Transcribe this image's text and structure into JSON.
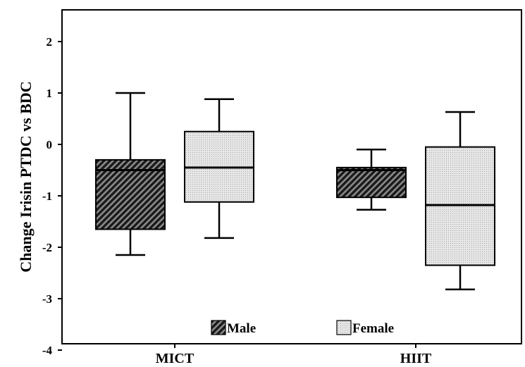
{
  "chart_data": {
    "type": "boxplot",
    "title": "",
    "xlabel": "",
    "ylabel": "Change Irisin PTDC vs BDC",
    "categories": [
      "MICT",
      "HIIT"
    ],
    "ylim": [
      -4,
      2.6
    ],
    "yticks": [
      "2",
      "1",
      "0",
      "-1",
      "-2",
      "-3",
      "-4"
    ],
    "legend_position": "bottom-center",
    "series": [
      {
        "name": "Male",
        "pattern": "diagonal-hatch-dark",
        "boxes": [
          {
            "category": "MICT",
            "min": -2.15,
            "q1": -1.65,
            "median": -0.5,
            "q3": -0.3,
            "max": 1.0
          },
          {
            "category": "HIIT",
            "min": -1.27,
            "q1": -1.03,
            "median": -0.5,
            "q3": -0.45,
            "max": -0.1
          }
        ]
      },
      {
        "name": "Female",
        "pattern": "dotted-light",
        "boxes": [
          {
            "category": "MICT",
            "min": -1.82,
            "q1": -1.12,
            "median": -0.45,
            "q3": 0.25,
            "max": 0.88
          },
          {
            "category": "HIIT",
            "min": -2.82,
            "q1": -2.35,
            "median": -1.18,
            "q3": -0.05,
            "max": 0.63
          }
        ]
      }
    ]
  }
}
